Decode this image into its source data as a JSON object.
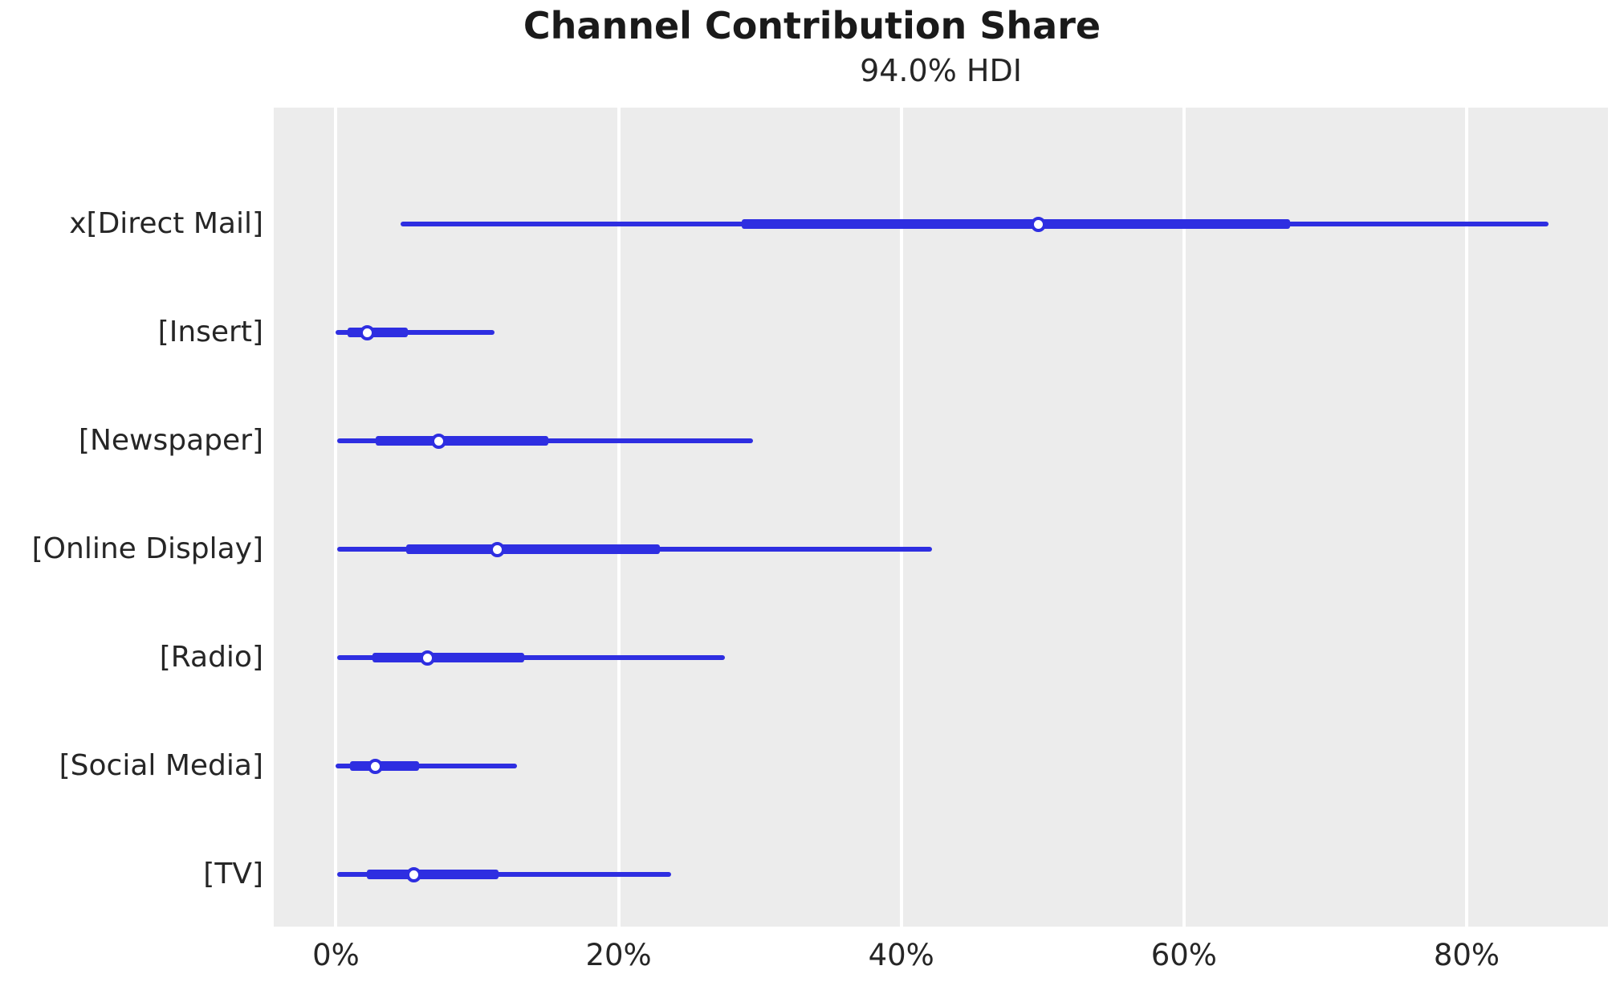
{
  "figure": {
    "title": "Channel Contribution Share",
    "subtitle": "94.0% HDI"
  },
  "colors": {
    "interval_blue": "#2e2ee1",
    "marker_fill": "#ffffff",
    "plot_background": "#ececec",
    "gridline": "#ffffff",
    "figure_background": "#ffffff",
    "title_text": "#1a1a1a",
    "label_text": "#262626"
  },
  "chart_data": {
    "type": "scatter",
    "variant": "forest / caterpillar plot of posterior HDI intervals (horizontal)",
    "title": "Channel Contribution Share",
    "subtitle": "94.0% HDI",
    "hdi_probability": "94.0%",
    "orientation": "horizontal",
    "categories": [
      "x[Direct Mail]",
      "[Insert]",
      "[Newspaper]",
      "[Online Display]",
      "[Radio]",
      "[Social Media]",
      "[TV]"
    ],
    "series": [
      {
        "name": "x[Direct Mail]",
        "hdi_low_pct": 4.6,
        "thick_low_pct": 28.7,
        "median_pct": 49.7,
        "thick_high_pct": 67.5,
        "hdi_high_pct": 85.8
      },
      {
        "name": "[Insert]",
        "hdi_low_pct": 0.0,
        "thick_low_pct": 0.8,
        "median_pct": 2.2,
        "thick_high_pct": 5.1,
        "hdi_high_pct": 11.2
      },
      {
        "name": "[Newspaper]",
        "hdi_low_pct": 0.1,
        "thick_low_pct": 2.8,
        "median_pct": 7.3,
        "thick_high_pct": 15.0,
        "hdi_high_pct": 29.5
      },
      {
        "name": "[Online Display]",
        "hdi_low_pct": 0.1,
        "thick_low_pct": 5.0,
        "median_pct": 11.4,
        "thick_high_pct": 22.9,
        "hdi_high_pct": 42.2
      },
      {
        "name": "[Radio]",
        "hdi_low_pct": 0.1,
        "thick_low_pct": 2.6,
        "median_pct": 6.5,
        "thick_high_pct": 13.3,
        "hdi_high_pct": 27.5
      },
      {
        "name": "[Social Media]",
        "hdi_low_pct": 0.0,
        "thick_low_pct": 1.0,
        "median_pct": 2.8,
        "thick_high_pct": 5.9,
        "hdi_high_pct": 12.8
      },
      {
        "name": "[TV]",
        "hdi_low_pct": 0.1,
        "thick_low_pct": 2.2,
        "median_pct": 5.5,
        "thick_high_pct": 11.5,
        "hdi_high_pct": 23.7
      }
    ],
    "xlabel": "",
    "ylabel": "",
    "x_tick_values": [
      0,
      20,
      40,
      60,
      80
    ],
    "x_tick_labels": [
      "0%",
      "20%",
      "40%",
      "60%",
      "80%"
    ],
    "xlim": [
      -4.4,
      90
    ],
    "grid": "vertical white gridlines on light-gray plot background, no horizontal gridlines",
    "legend": "none"
  }
}
